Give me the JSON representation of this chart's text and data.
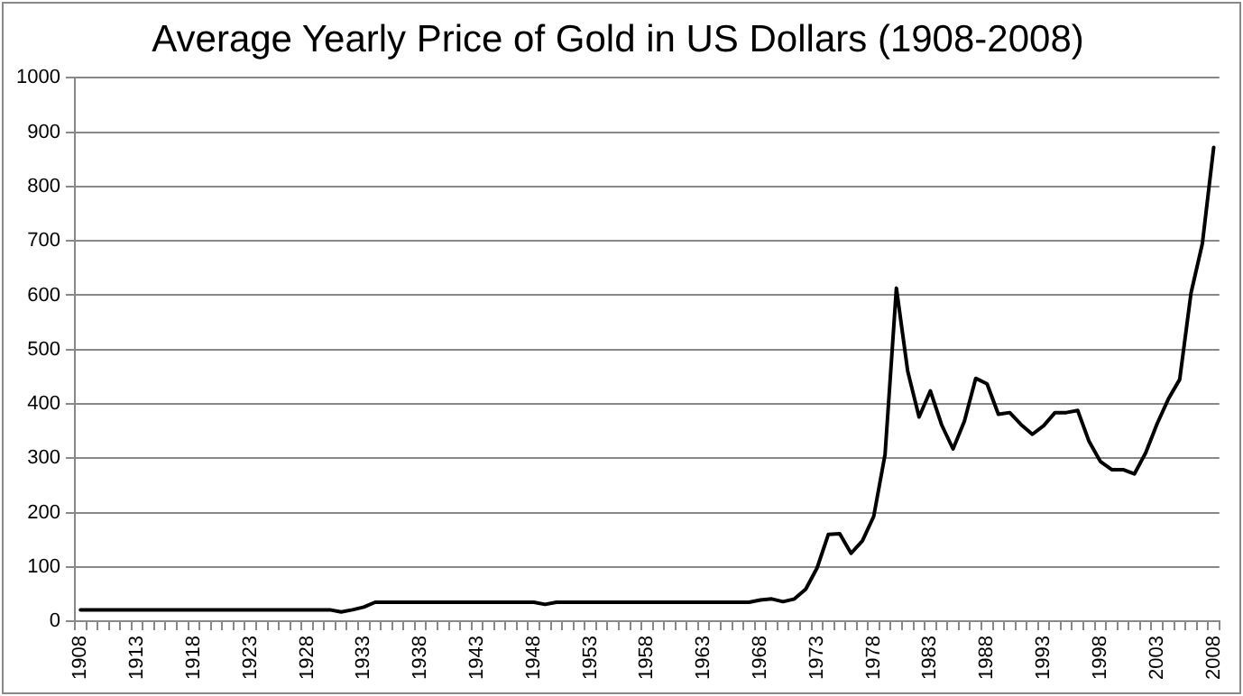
{
  "chart_data": {
    "type": "line",
    "title": "Average Yearly Price of Gold in US Dollars (1908-2008)",
    "categories": [
      "1908",
      null,
      null,
      null,
      null,
      "1913",
      null,
      null,
      null,
      null,
      "1918",
      null,
      null,
      null,
      null,
      "1923",
      null,
      null,
      null,
      null,
      "1928",
      null,
      null,
      null,
      null,
      "1933",
      null,
      null,
      null,
      null,
      "1938",
      null,
      null,
      null,
      null,
      "1943",
      null,
      null,
      null,
      null,
      "1948",
      null,
      null,
      null,
      null,
      "1953",
      null,
      null,
      null,
      null,
      "1958",
      null,
      null,
      null,
      null,
      "1963",
      null,
      null,
      null,
      null,
      "1968",
      null,
      null,
      null,
      null,
      "1973",
      null,
      null,
      null,
      null,
      "1978",
      null,
      null,
      null,
      null,
      "1983",
      null,
      null,
      null,
      null,
      "1988",
      null,
      null,
      null,
      null,
      "1993",
      null,
      null,
      null,
      null,
      "1998",
      null,
      null,
      null,
      null,
      "2003",
      null,
      null,
      null,
      null,
      "2008"
    ],
    "series": [
      {
        "color": "#000000",
        "values": [
          21,
          21,
          21,
          21,
          21,
          21,
          21,
          21,
          21,
          21,
          21,
          21,
          21,
          21,
          21,
          21,
          21,
          21,
          21,
          21,
          21,
          21,
          21,
          17,
          21,
          26,
          35,
          35,
          35,
          35,
          35,
          35,
          35,
          35,
          35,
          35,
          35,
          35,
          35,
          35,
          35,
          31,
          35,
          35,
          35,
          35,
          35,
          35,
          35,
          35,
          35,
          35,
          35,
          35,
          35,
          35,
          35,
          35,
          35,
          35,
          39,
          41,
          36,
          41,
          59,
          98,
          160,
          161,
          125,
          148,
          193,
          307,
          613,
          460,
          376,
          424,
          361,
          317,
          368,
          447,
          437,
          381,
          384,
          362,
          344,
          360,
          384,
          384,
          388,
          331,
          294,
          279,
          279,
          271,
          310,
          363,
          409,
          445,
          604,
          695,
          872
        ]
      }
    ],
    "ylim": [
      0,
      1000
    ],
    "yticks": [
      0,
      100,
      200,
      300,
      400,
      500,
      600,
      700,
      800,
      900,
      1000
    ],
    "grid": "y",
    "legend": false,
    "marker": "none",
    "line_style": "solid"
  }
}
